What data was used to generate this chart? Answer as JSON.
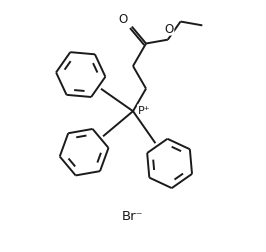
{
  "background_color": "#ffffff",
  "line_color": "#1a1a1a",
  "line_width": 1.4,
  "br_label": "Br⁻",
  "p_label": "P⁺",
  "o_label_1": "O",
  "o_label_2": "O",
  "figsize": [
    2.66,
    2.53
  ],
  "dpi": 100
}
